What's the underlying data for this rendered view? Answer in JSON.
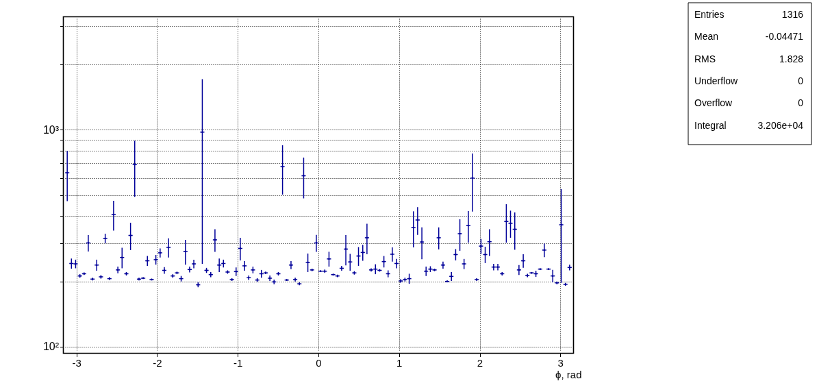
{
  "chart_data": {
    "type": "scatter",
    "xlabel": "ϕ, rad",
    "color": "#000099",
    "marker": "cross",
    "log": "y",
    "grid": true,
    "annotations": [
      "Entries 1316",
      "Mean -0.04471",
      "RMS 1.828",
      "Underflow 0",
      "Overflow 0",
      "Integral 3.206e+04"
    ],
    "xlim": [
      -3.142,
      3.142
    ],
    "xticks": [
      -3,
      -2,
      -1,
      0,
      1,
      2,
      3
    ],
    "ylim": [
      95,
      3260
    ],
    "yticks": [
      {
        "value": 100,
        "label": "10²"
      },
      {
        "value": 200,
        "label": null
      },
      {
        "value": 300,
        "label": null
      },
      {
        "value": 400,
        "label": null
      },
      {
        "value": 500,
        "label": null
      },
      {
        "value": 600,
        "label": null
      },
      {
        "value": 700,
        "label": null
      },
      {
        "value": 800,
        "label": null
      },
      {
        "value": 900,
        "label": null
      },
      {
        "value": 1000,
        "label": "10³"
      },
      {
        "value": 2000,
        "label": null
      },
      {
        "value": 3000,
        "label": null
      }
    ],
    "x": [
      -3.115,
      -3.063,
      -3.011,
      -2.958,
      -2.906,
      -2.854,
      -2.801,
      -2.749,
      -2.697,
      -2.644,
      -2.592,
      -2.54,
      -2.487,
      -2.435,
      -2.382,
      -2.33,
      -2.278,
      -2.225,
      -2.173,
      -2.121,
      -2.068,
      -2.016,
      -1.963,
      -1.911,
      -1.859,
      -1.806,
      -1.754,
      -1.702,
      -1.649,
      -1.597,
      -1.545,
      -1.492,
      -1.44,
      -1.388,
      -1.335,
      -1.283,
      -1.23,
      -1.178,
      -1.126,
      -1.073,
      -1.021,
      -0.969,
      -0.916,
      -0.864,
      -0.812,
      -0.759,
      -0.707,
      -0.654,
      -0.602,
      -0.55,
      -0.497,
      -0.445,
      -0.393,
      -0.34,
      -0.288,
      -0.236,
      -0.183,
      -0.131,
      -0.079,
      -0.026,
      0.026,
      0.079,
      0.131,
      0.183,
      0.236,
      0.288,
      0.34,
      0.393,
      0.445,
      0.497,
      0.55,
      0.602,
      0.654,
      0.707,
      0.759,
      0.812,
      0.864,
      0.916,
      0.969,
      1.021,
      1.073,
      1.126,
      1.178,
      1.23,
      1.283,
      1.335,
      1.388,
      1.44,
      1.492,
      1.545,
      1.597,
      1.649,
      1.702,
      1.754,
      1.806,
      1.859,
      1.911,
      1.963,
      2.016,
      2.068,
      2.121,
      2.173,
      2.225,
      2.278,
      2.33,
      2.382,
      2.435,
      2.487,
      2.54,
      2.592,
      2.644,
      2.697,
      2.749,
      2.801,
      2.854,
      2.906,
      2.958,
      3.011,
      3.063,
      3.115
    ],
    "values": [
      634,
      242,
      241,
      212,
      217,
      301,
      205,
      238,
      210,
      316,
      206,
      407,
      226,
      258,
      217,
      326,
      691,
      205,
      207,
      249,
      204,
      252,
      271,
      225,
      287,
      212,
      219,
      206,
      275,
      227,
      241,
      193,
      976,
      225,
      215,
      311,
      238,
      242,
      221,
      204,
      222,
      284,
      236,
      208,
      226,
      203,
      217,
      219,
      207,
      199,
      217,
      676,
      203,
      238,
      204,
      195,
      614,
      245,
      226,
      301,
      223,
      223,
      254,
      215,
      212,
      230,
      282,
      246,
      219,
      262,
      272,
      318,
      226,
      228,
      225,
      247,
      217,
      267,
      242,
      201,
      204,
      206,
      354,
      384,
      304,
      223,
      228,
      226,
      318,
      238,
      200,
      211,
      266,
      332,
      241,
      362,
      599,
      204,
      291,
      266,
      305,
      233,
      233,
      217,
      378,
      371,
      348,
      226,
      249,
      213,
      219,
      217,
      228,
      279,
      228,
      212,
      197,
      365,
      194,
      232
    ],
    "errors": [
      165,
      13,
      11,
      4,
      3,
      26,
      3,
      14,
      4,
      16,
      3,
      64,
      8,
      28,
      4,
      47,
      200,
      3,
      2,
      13,
      2,
      13,
      13,
      8,
      29,
      4,
      3,
      6,
      36,
      7,
      11,
      5,
      735,
      6,
      6,
      37,
      17,
      10,
      4,
      3,
      10,
      34,
      12,
      5,
      8,
      4,
      9,
      3,
      6,
      5,
      4,
      173,
      2,
      10,
      4,
      3,
      131,
      24,
      3,
      27,
      2,
      4,
      20,
      2,
      3,
      6,
      45,
      22,
      4,
      26,
      23,
      51,
      4,
      12,
      3,
      15,
      8,
      20,
      12,
      4,
      4,
      11,
      67,
      56,
      51,
      11,
      7,
      3,
      37,
      9,
      2,
      10,
      16,
      55,
      13,
      60,
      179,
      3,
      23,
      23,
      43,
      8,
      8,
      4,
      76,
      53,
      68,
      12,
      18,
      4,
      2,
      7,
      2,
      20,
      2,
      14,
      3,
      168,
      3,
      7
    ],
    "xerrors": [
      0.026,
      0.026,
      0.026,
      0.026,
      0.026,
      0.026,
      0.026,
      0.026,
      0.026,
      0.026,
      0.026,
      0.026,
      0.026,
      0.026,
      0.026,
      0.026,
      0.026,
      0.026,
      0.026,
      0.026,
      0.026,
      0.026,
      0.026,
      0.026,
      0.026,
      0.026,
      0.026,
      0.026,
      0.026,
      0.026,
      0.026,
      0.026,
      0.026,
      0.026,
      0.026,
      0.026,
      0.026,
      0.026,
      0.026,
      0.026,
      0.026,
      0.026,
      0.026,
      0.026,
      0.026,
      0.026,
      0.026,
      0.026,
      0.026,
      0.026,
      0.026,
      0.026,
      0.026,
      0.026,
      0.026,
      0.026,
      0.026,
      0.026,
      0.026,
      0.026,
      0.026,
      0.026,
      0.026,
      0.026,
      0.026,
      0.026,
      0.026,
      0.026,
      0.026,
      0.026,
      0.026,
      0.026,
      0.026,
      0.026,
      0.026,
      0.026,
      0.026,
      0.026,
      0.026,
      0.026,
      0.026,
      0.026,
      0.026,
      0.026,
      0.026,
      0.026,
      0.026,
      0.026,
      0.026,
      0.026,
      0.026,
      0.026,
      0.026,
      0.026,
      0.026,
      0.026,
      0.026,
      0.026,
      0.026,
      0.026,
      0.026,
      0.026,
      0.026,
      0.026,
      0.026,
      0.026,
      0.026,
      0.026,
      0.026,
      0.026,
      0.026,
      0.026,
      0.026,
      0.026,
      0.026,
      0.026,
      0.026,
      0.026,
      0.026,
      0.026
    ]
  }
}
